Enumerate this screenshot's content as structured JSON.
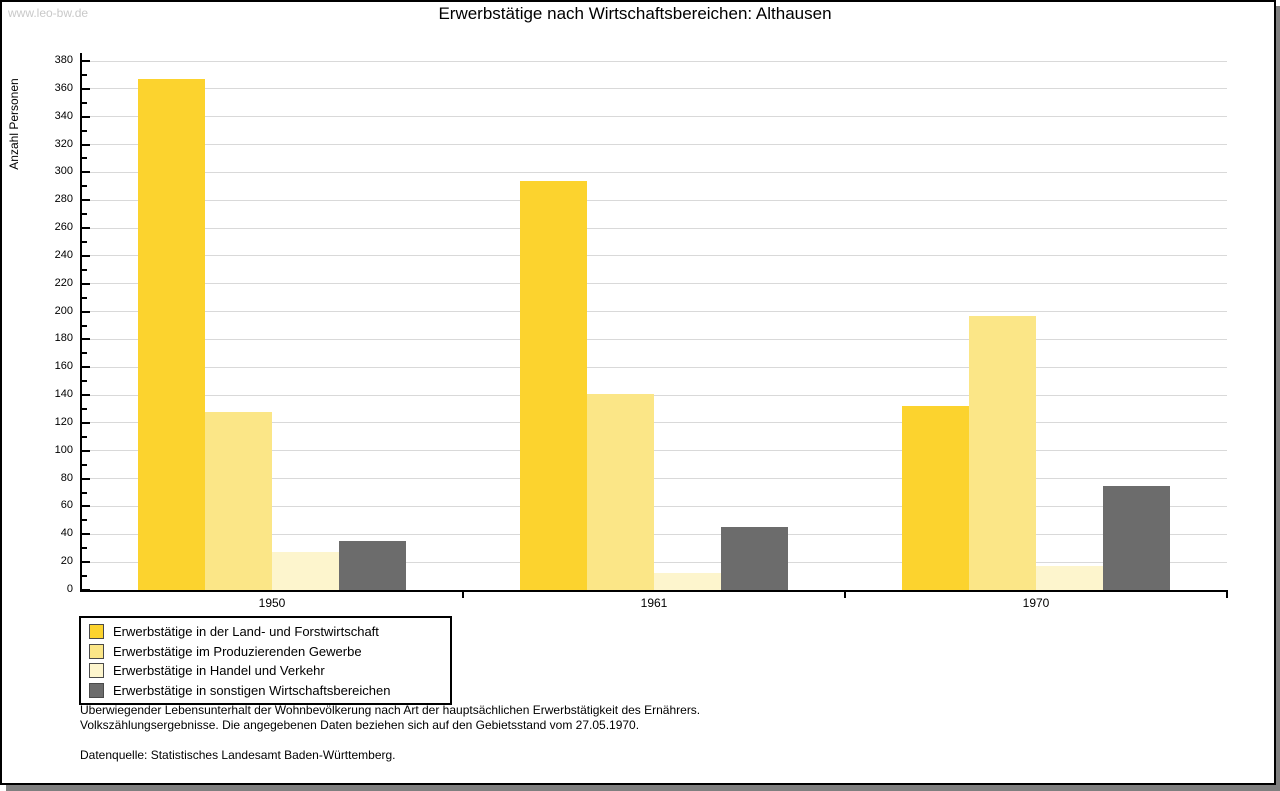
{
  "watermark": "www.leo-bw.de",
  "title": "Erwerbstätige nach Wirtschaftsbereichen: Althausen",
  "chart_data": {
    "type": "bar",
    "title": "Erwerbstätige nach Wirtschaftsbereichen: Althausen",
    "xlabel": "",
    "ylabel": "Anzahl Personen",
    "categories": [
      "1950",
      "1961",
      "1970"
    ],
    "series": [
      {
        "name": "Erwerbstätige in der Land- und Forstwirtschaft",
        "color": "#fcd32e",
        "values": [
          367,
          294,
          132
        ]
      },
      {
        "name": "Erwerbstätige im Produzierenden Gewerbe",
        "color": "#fbe687",
        "values": [
          128,
          141,
          197
        ]
      },
      {
        "name": "Erwerbstätige in Handel und Verkehr",
        "color": "#fdf5cd",
        "values": [
          27,
          12,
          17
        ]
      },
      {
        "name": "Erwerbstätige in sonstigen Wirtschaftsbereichen",
        "color": "#6c6c6c",
        "values": [
          35,
          45,
          75
        ]
      }
    ],
    "ylim": [
      0,
      380
    ],
    "ytick_step": 20,
    "ytick_minor_step": 10,
    "grid": true,
    "legend_position": "bottom-left"
  },
  "footnote": {
    "line1": "Überwiegender Lebensunterhalt der Wohnbevölkerung nach Art der hauptsächlichen Erwerbstätigkeit des Ernährers.",
    "line2": "Volkszählungsergebnisse. Die angegebenen Daten beziehen sich auf den Gebietsstand vom 27.05.1970."
  },
  "source": "Datenquelle: Statistisches Landesamt Baden-Württemberg."
}
